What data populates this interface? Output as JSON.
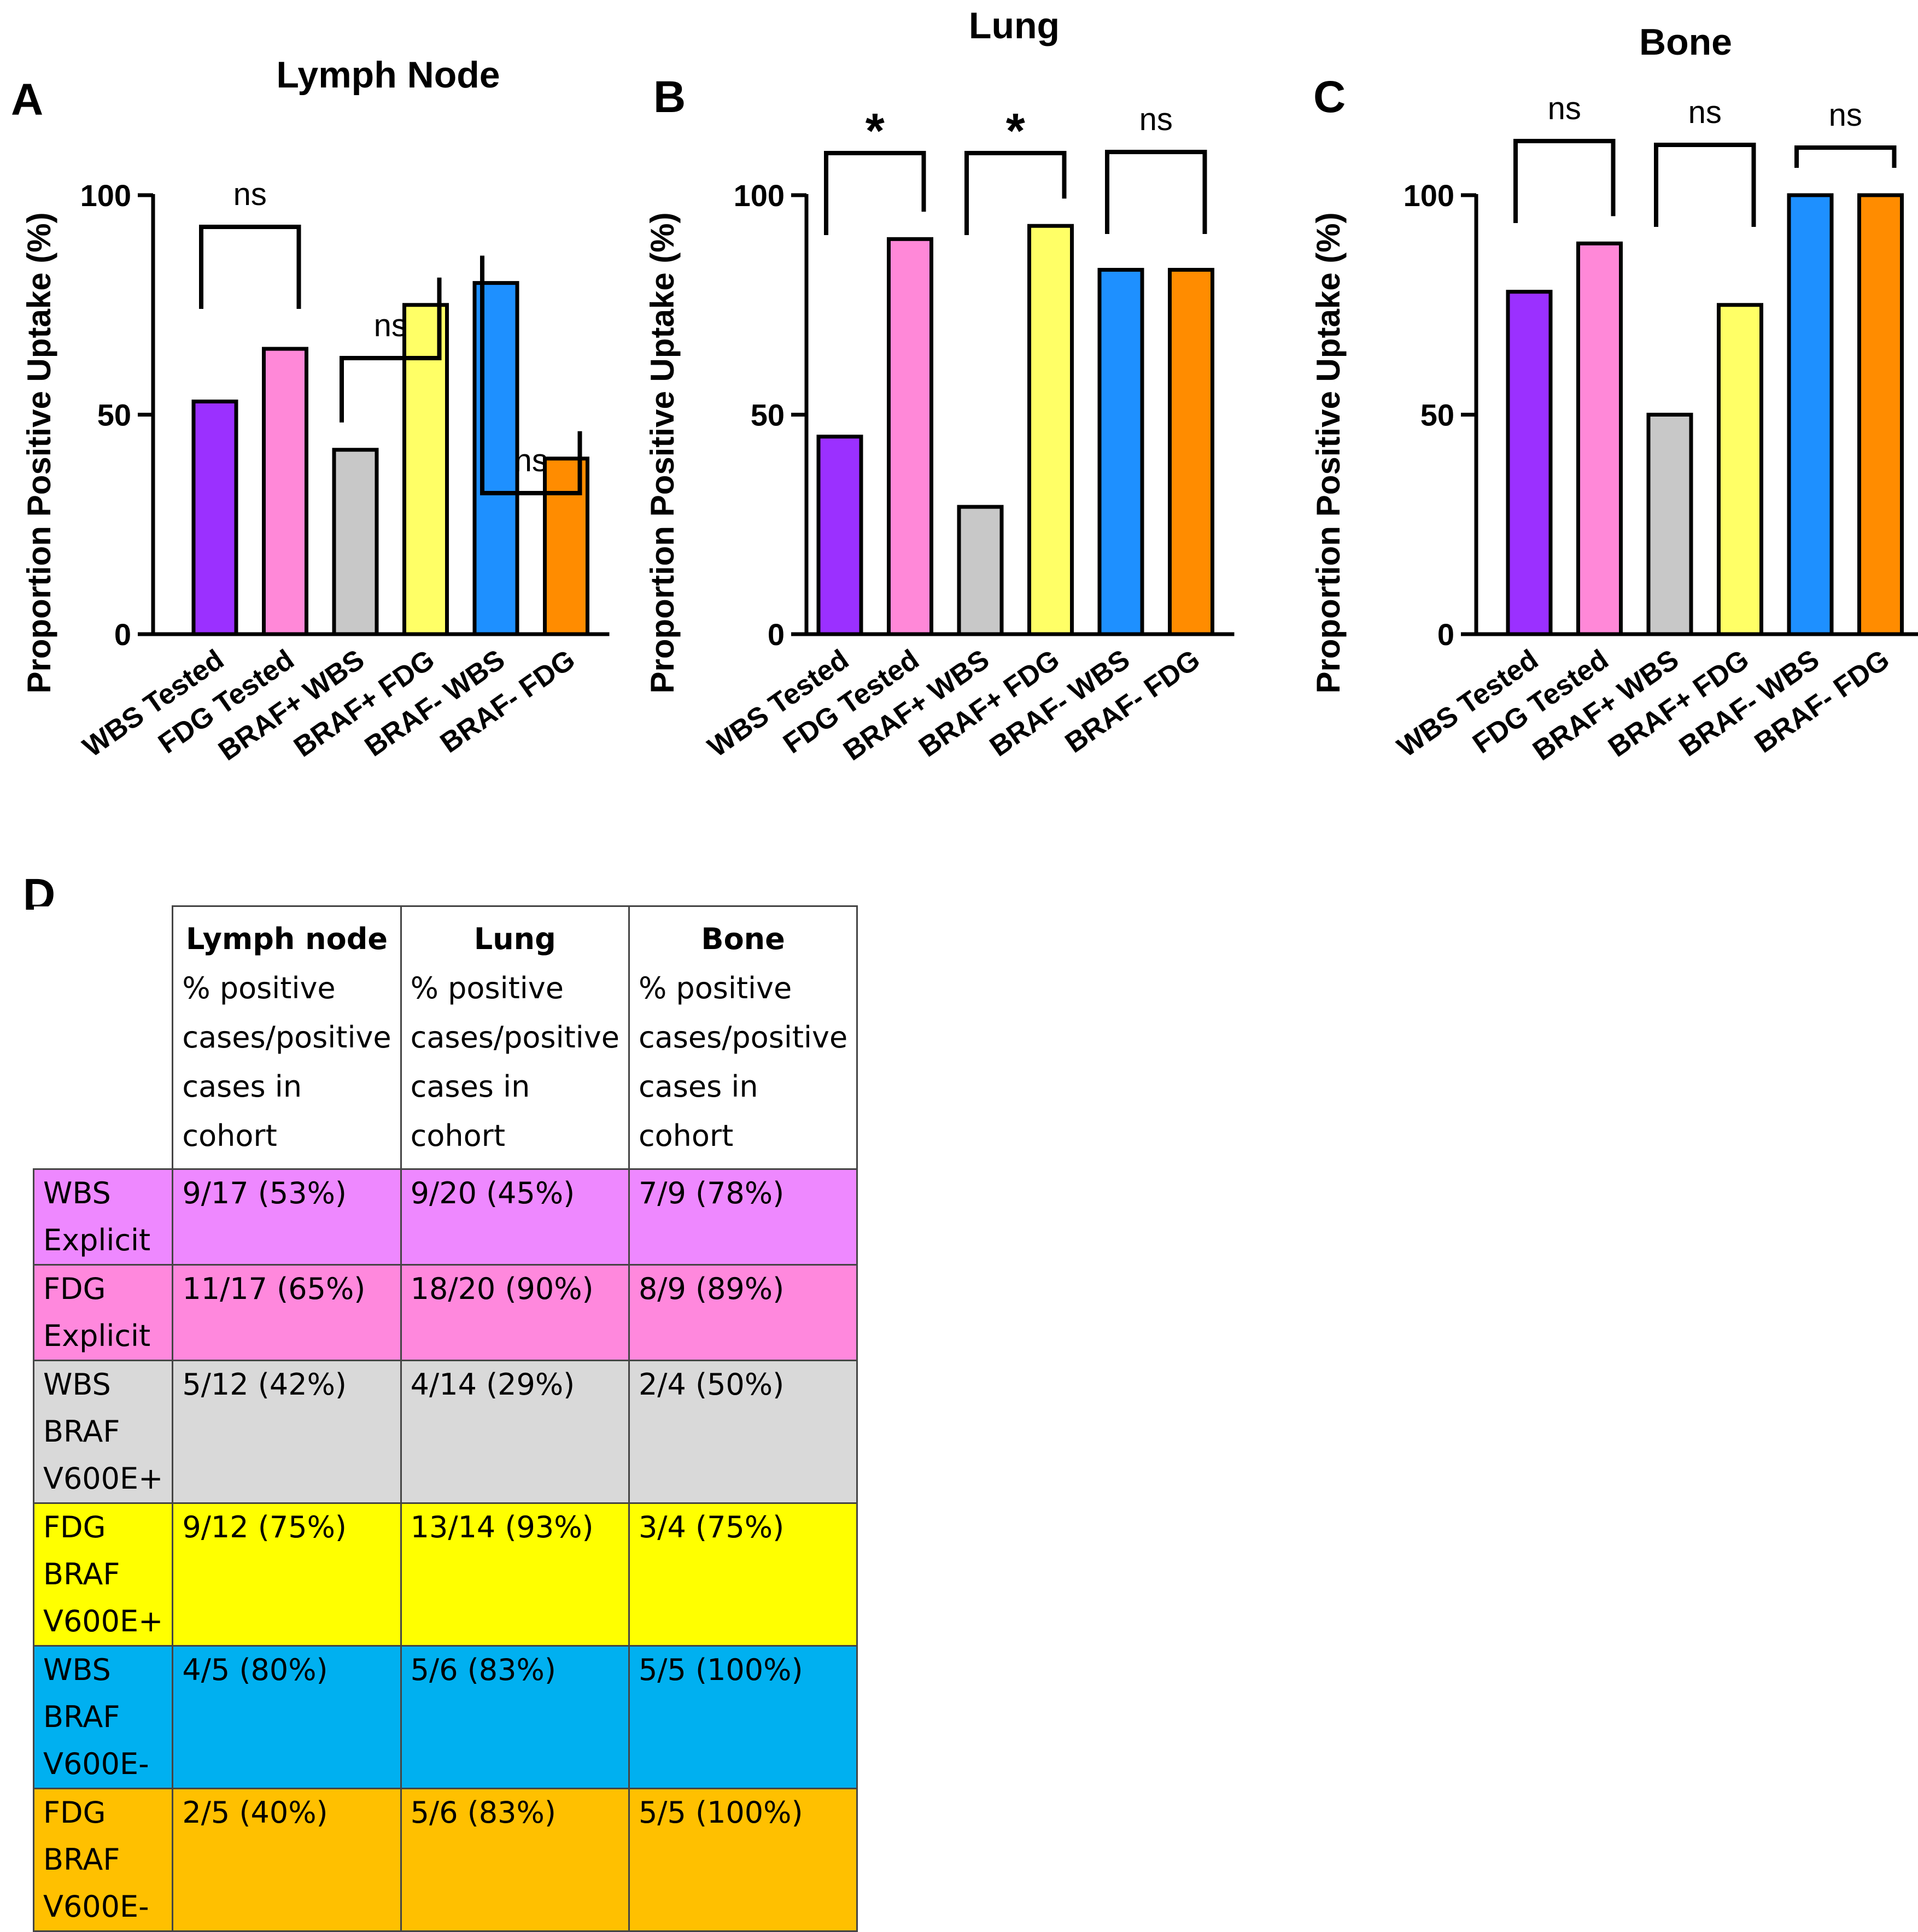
{
  "chart_data": [
    {
      "panel": "A",
      "type": "bar",
      "title": "Lymph Node",
      "ylabel": "Proportion Positive Uptake (%)",
      "ylim": [
        0,
        100
      ],
      "yticks": [
        "0",
        "50",
        "100"
      ],
      "categories": [
        "WBS Tested",
        "FDG Tested",
        "BRAF+ WBS",
        "BRAF+ FDG",
        "BRAF- WBS",
        "BRAF- FDG"
      ],
      "values": [
        53,
        65,
        42,
        75,
        80,
        40
      ],
      "colors": [
        "#9b30ff",
        "#ff88d8",
        "#c8c8c8",
        "#ffff66",
        "#1e90ff",
        "#ff8c00"
      ],
      "comparisons": [
        {
          "pair": [
            0,
            1
          ],
          "label": "ns"
        },
        {
          "pair": [
            2,
            3
          ],
          "label": "ns"
        },
        {
          "pair": [
            4,
            5
          ],
          "label": "ns"
        }
      ]
    },
    {
      "panel": "B",
      "type": "bar",
      "title": "Lung",
      "ylabel": "Proportion Positive Uptake (%)",
      "ylim": [
        0,
        100
      ],
      "yticks": [
        "0",
        "50",
        "100"
      ],
      "categories": [
        "WBS Tested",
        "FDG Tested",
        "BRAF+ WBS",
        "BRAF+ FDG",
        "BRAF- WBS",
        "BRAF- FDG"
      ],
      "values": [
        45,
        90,
        29,
        93,
        83,
        83
      ],
      "colors": [
        "#9b30ff",
        "#ff88d8",
        "#c8c8c8",
        "#ffff66",
        "#1e90ff",
        "#ff8c00"
      ],
      "comparisons": [
        {
          "pair": [
            0,
            1
          ],
          "label": "*"
        },
        {
          "pair": [
            2,
            3
          ],
          "label": "*"
        },
        {
          "pair": [
            4,
            5
          ],
          "label": "ns"
        }
      ]
    },
    {
      "panel": "C",
      "type": "bar",
      "title": "Bone",
      "ylabel": "Proportion Positive Uptake (%)",
      "ylim": [
        0,
        100
      ],
      "yticks": [
        "0",
        "50",
        "100"
      ],
      "categories": [
        "WBS Tested",
        "FDG Tested",
        "BRAF+ WBS",
        "BRAF+ FDG",
        "BRAF- WBS",
        "BRAF- FDG"
      ],
      "values": [
        78,
        89,
        50,
        75,
        100,
        100
      ],
      "colors": [
        "#9b30ff",
        "#ff88d8",
        "#c8c8c8",
        "#ffff66",
        "#1e90ff",
        "#ff8c00"
      ],
      "comparisons": [
        {
          "pair": [
            0,
            1
          ],
          "label": "ns"
        },
        {
          "pair": [
            2,
            3
          ],
          "label": "ns"
        },
        {
          "pair": [
            4,
            5
          ],
          "label": "ns"
        }
      ]
    }
  ],
  "table": {
    "panel": "D",
    "headers": [
      {
        "title": "Lymph node",
        "subtitle_lines": [
          "% positive",
          "cases/positive",
          "cases in cohort"
        ]
      },
      {
        "title": "Lung",
        "subtitle_lines": [
          "% positive",
          "cases/positive",
          "cases in cohort"
        ]
      },
      {
        "title": "Bone",
        "subtitle_lines": [
          "% positive",
          "cases/positive",
          "cases in cohort"
        ]
      }
    ],
    "rows": [
      {
        "label": "WBS Explicit",
        "color": "#ee88ff",
        "cells": [
          "9/17 (53%)",
          "9/20 (45%)",
          "7/9 (78%)"
        ]
      },
      {
        "label": "FDG Explicit",
        "color": "#ff88dd",
        "cells": [
          "11/17 (65%)",
          "18/20 (90%)",
          "8/9 (89%)"
        ]
      },
      {
        "label": "WBS BRAF V600E+",
        "color": "#d9d9d9",
        "cells": [
          "5/12 (42%)",
          "4/14 (29%)",
          "2/4 (50%)"
        ]
      },
      {
        "label": "FDG BRAF V600E+",
        "color": "#ffff00",
        "cells": [
          "9/12 (75%)",
          "13/14 (93%)",
          "3/4 (75%)"
        ]
      },
      {
        "label": "WBS BRAF V600E-",
        "color": "#00b0f0",
        "cells": [
          "4/5 (80%)",
          "5/6 (83%)",
          "5/5 (100%)"
        ]
      },
      {
        "label": "FDG BRAF V600E-",
        "color": "#ffc000",
        "cells": [
          "2/5 (40%)",
          "5/6 (83%)",
          "5/5 (100%)"
        ]
      }
    ]
  }
}
